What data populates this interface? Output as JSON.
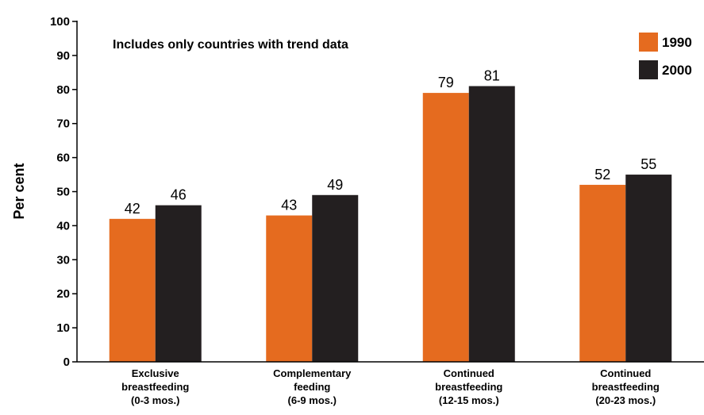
{
  "chart_data": {
    "type": "bar",
    "annotation": "Includes only countries with trend data",
    "ylabel": "Per cent",
    "ylim": [
      0,
      100
    ],
    "yticks": [
      "0",
      "10",
      "20",
      "30",
      "40",
      "50",
      "60",
      "70",
      "80",
      "90",
      "100"
    ],
    "categories": [
      [
        "Exclusive",
        "breastfeeding",
        "(0-3 mos.)"
      ],
      [
        "Complementary",
        "feeding",
        "(6-9 mos.)"
      ],
      [
        "Continued",
        "breastfeeding",
        "(12-15 mos.)"
      ],
      [
        "Continued",
        "breastfeeding",
        "(20-23 mos.)"
      ]
    ],
    "series": [
      {
        "name": "1990",
        "color": "#e56b1f",
        "values": [
          42,
          43,
          79,
          52
        ],
        "labels": [
          "42",
          "43",
          "79",
          "52"
        ]
      },
      {
        "name": "2000",
        "color": "#231f20",
        "values": [
          46,
          49,
          81,
          55
        ],
        "labels": [
          "46",
          "49",
          "81",
          "55"
        ]
      }
    ],
    "legend_position": "top-right",
    "grid": false
  }
}
